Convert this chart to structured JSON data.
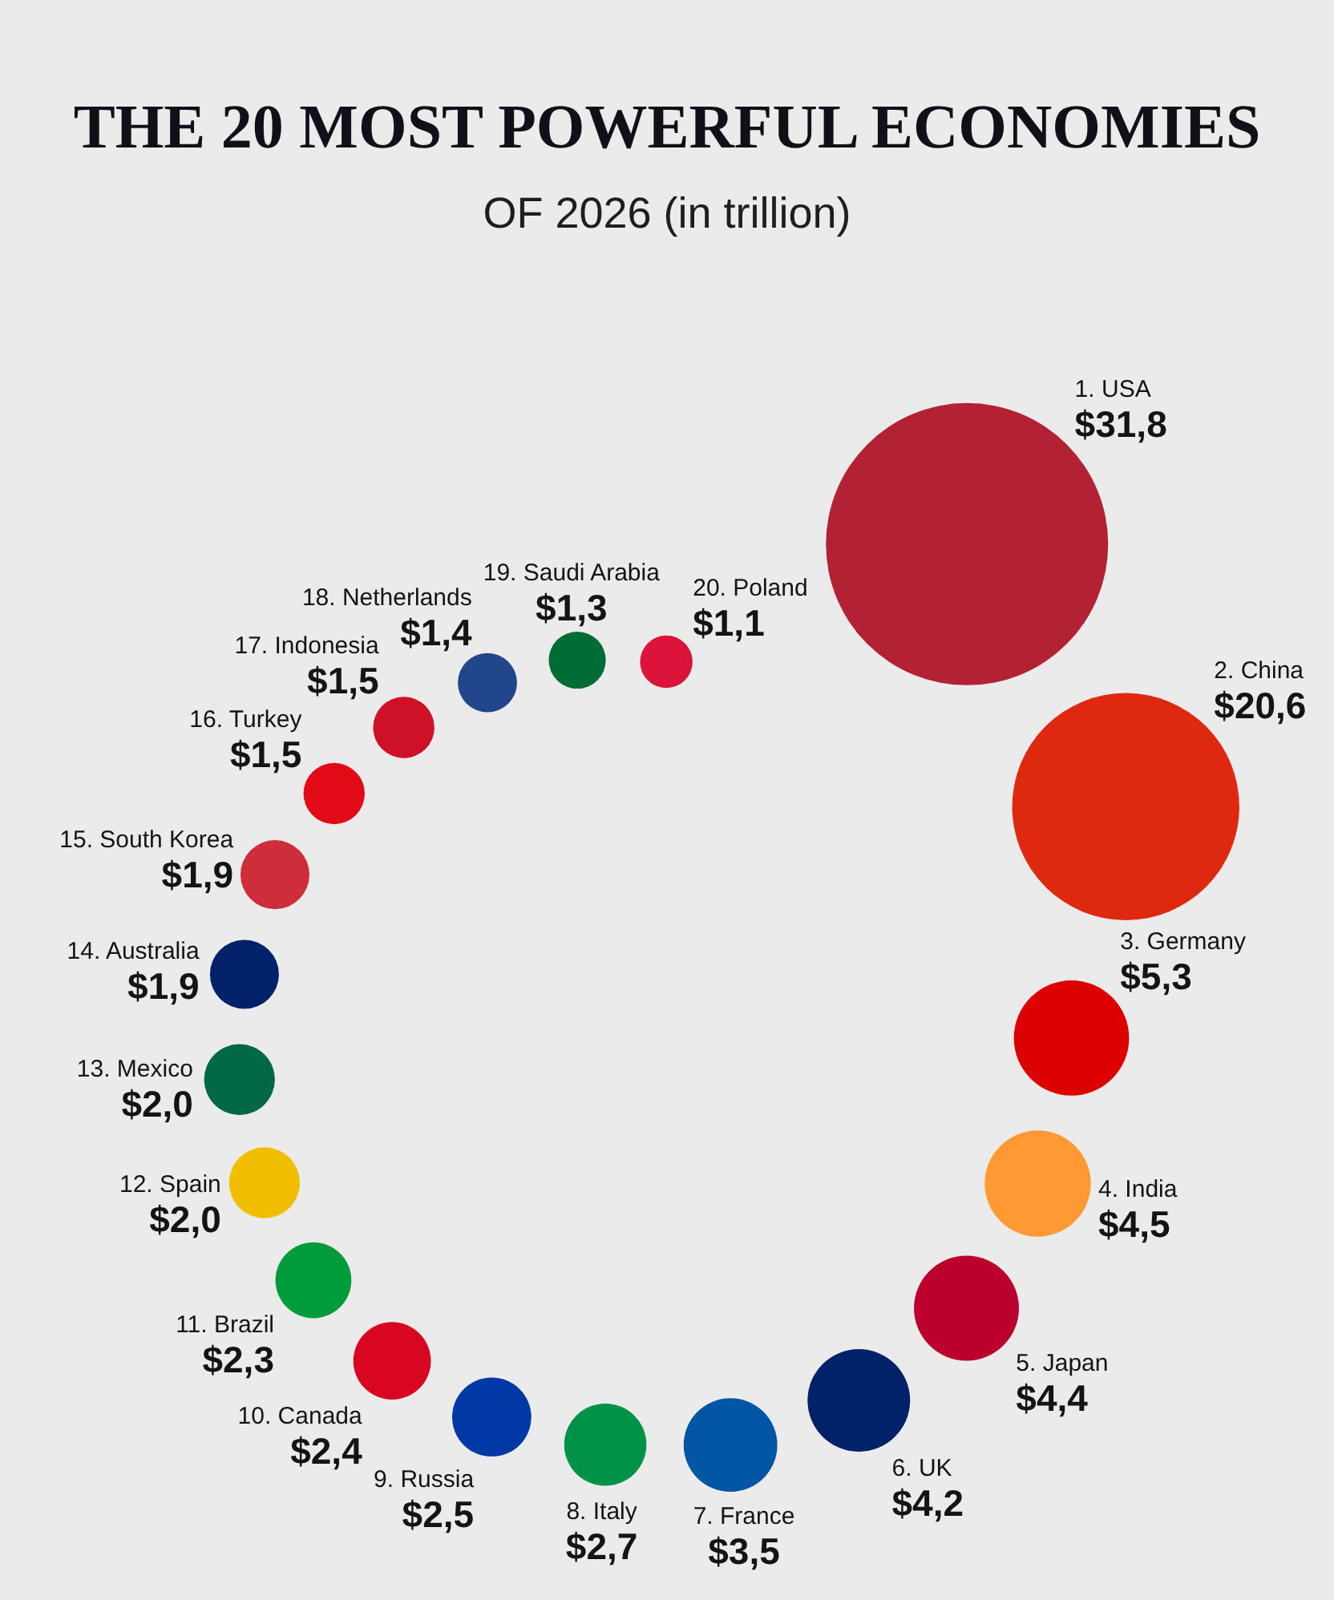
{
  "chart_data": {
    "type": "other",
    "title": "THE 20 MOST POWERFUL ECONOMIES",
    "subtitle": "OF 2026 (in trillion)",
    "categories": [
      "1. USA",
      "2. China",
      "3. Germany",
      "4. India",
      "5. Japan",
      "6. UK",
      "7. France",
      "8. Italy",
      "9. Russia",
      "10. Canada",
      "11. Brazil",
      "12. Spain",
      "13. Mexico",
      "14. Australia",
      "15. South Korea",
      "16. Turkey",
      "17. Indonesia",
      "18. Netherlands",
      "19. Saudi Arabia",
      "20. Poland"
    ],
    "values": [
      31.8,
      20.6,
      5.3,
      4.5,
      4.4,
      4.2,
      3.5,
      2.7,
      2.5,
      2.4,
      2.3,
      2.0,
      2.0,
      1.9,
      1.9,
      1.5,
      1.5,
      1.4,
      1.3,
      1.1
    ],
    "value_labels": [
      "$31,8",
      "$20,6",
      "$5,3",
      "$4,5",
      "$4,4",
      "$4,2",
      "$3,5",
      "$2,7",
      "$2,5",
      "$2,4",
      "$2,3",
      "$2,0",
      "$2,0",
      "$1,9",
      "$1,9",
      "$1,5",
      "$1,5",
      "$1,4",
      "$1,3",
      "$1,1"
    ],
    "colors": [
      "#b22234",
      "#de2910",
      "#dd0000",
      "#ff9933",
      "#bc002d",
      "#012169",
      "#0055a4",
      "#009246",
      "#0039a6",
      "#d80621",
      "#009c3b",
      "#f1bf00",
      "#006847",
      "#012169",
      "#cd2e3a",
      "#e30a17",
      "#ce1126",
      "#21468b",
      "#006c35",
      "#dc143c"
    ]
  }
}
